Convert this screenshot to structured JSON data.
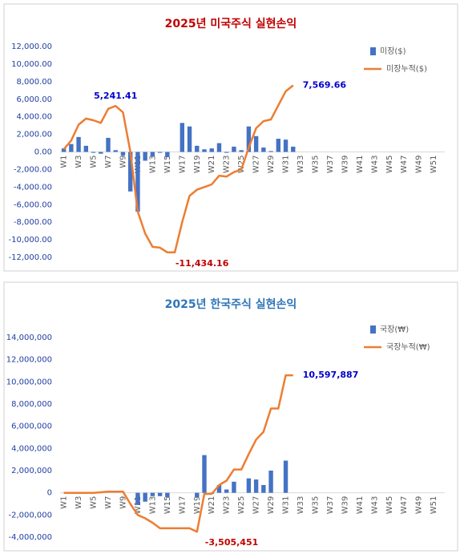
{
  "chart_data": [
    {
      "type": "combo",
      "title": "2025년 미국주식 실현손익",
      "title_color": "#c00000",
      "categories": [
        "W1",
        null,
        "W3",
        null,
        "W5",
        null,
        "W7",
        null,
        "W9",
        null,
        "W11",
        null,
        "W13",
        null,
        "W15",
        null,
        "W17",
        null,
        "W19",
        null,
        "W21",
        null,
        "W23",
        null,
        "W25",
        null,
        "W27",
        null,
        "W29",
        null,
        "W31",
        null,
        "W33",
        null,
        "W35",
        null,
        "W37",
        null,
        "W39",
        null,
        "W41",
        null,
        "W43",
        null,
        "W45",
        null,
        "W47",
        null,
        "W49",
        null,
        "W51",
        null
      ],
      "series": [
        {
          "name": "미장($)",
          "kind": "bar",
          "color": "#4472c4",
          "values": [
            400,
            900,
            1700,
            700,
            -100,
            -200,
            1600,
            200,
            -400,
            -4500,
            -6800,
            -1000,
            -500,
            -100,
            -600,
            0,
            3300,
            2900,
            700,
            300,
            400,
            1000,
            -100,
            600,
            200,
            2900,
            1800,
            500,
            100,
            1500,
            1400,
            600,
            null,
            null,
            null,
            null,
            null,
            null,
            null,
            null,
            null,
            null,
            null,
            null,
            null,
            null,
            null,
            null,
            null,
            null,
            null,
            null
          ]
        },
        {
          "name": "미장누적($)",
          "kind": "line",
          "color": "#ed7d31",
          "values": [
            300,
            1300,
            3100,
            3800,
            3600,
            3300,
            4900,
            5241.41,
            4500,
            0,
            -6800,
            -9300,
            -10800,
            -10900,
            -11434.16,
            -11434.16,
            -8000,
            -5000,
            -4300,
            -4000,
            -3700,
            -2700,
            -2800,
            -2300,
            -2000,
            500,
            2700,
            3500,
            3700,
            5300,
            6900,
            7569.66,
            null,
            null,
            null,
            null,
            null,
            null,
            null,
            null,
            null,
            null,
            null,
            null,
            null,
            null,
            null,
            null,
            null,
            null,
            null,
            null
          ],
          "value_labels": [
            null,
            null,
            null,
            null,
            null,
            null,
            null,
            "5,241.41",
            null,
            null,
            null,
            null,
            null,
            null,
            "-11,434.16",
            null,
            null,
            null,
            null,
            null,
            null,
            null,
            null,
            null,
            null,
            null,
            null,
            null,
            null,
            null,
            null,
            "7,569.66",
            null,
            null,
            null,
            null,
            null,
            null,
            null,
            null,
            null,
            null,
            null,
            null,
            null,
            null,
            null,
            null,
            null,
            null,
            null,
            null
          ],
          "value_label_colors": {
            "positive": "#0000cc",
            "negative": "#c00000"
          }
        }
      ],
      "ylim": [
        -12000,
        12000
      ],
      "yticks": [
        {
          "value": -12000,
          "label": "-12,000.00"
        },
        {
          "value": -10000,
          "label": "-10,000.00"
        },
        {
          "value": -8000,
          "label": "-8,000.00"
        },
        {
          "value": -6000,
          "label": "-6,000.00"
        },
        {
          "value": -4000,
          "label": "-4,000.00"
        },
        {
          "value": -2000,
          "label": "-2,000.00"
        },
        {
          "value": 0,
          "label": "0.00"
        },
        {
          "value": 2000,
          "label": "2,000.00"
        },
        {
          "value": 4000,
          "label": "4,000.00"
        },
        {
          "value": 6000,
          "label": "6,000.00"
        },
        {
          "value": 8000,
          "label": "8,000.00"
        },
        {
          "value": 10000,
          "label": "10,000.00"
        },
        {
          "value": 12000,
          "label": "12,000.00"
        }
      ],
      "legend": "top-right",
      "ytick_color": "#1f3fa0"
    },
    {
      "type": "combo",
      "title": "2025년 한국주식 실현손익",
      "title_color": "#2e75b6",
      "categories": [
        "W1",
        null,
        "W3",
        null,
        "W5",
        null,
        "W7",
        null,
        "W9",
        null,
        "W11",
        null,
        "W13",
        null,
        "W15",
        null,
        "W17",
        null,
        "W19",
        null,
        "W21",
        null,
        "W23",
        null,
        "W25",
        null,
        "W27",
        null,
        "W29",
        null,
        "W31",
        null,
        "W33",
        null,
        "W35",
        null,
        "W37",
        null,
        "W39",
        null,
        "W41",
        null,
        "W43",
        null,
        "W45",
        null,
        "W47",
        null,
        "W49",
        null,
        "W51",
        null
      ],
      "series": [
        {
          "name": "국장(₩)",
          "kind": "bar",
          "color": "#4472c4",
          "values": [
            0,
            0,
            0,
            0,
            0,
            0,
            0,
            0,
            0,
            0,
            -1100000,
            -800000,
            -300000,
            -300000,
            -400000,
            0,
            0,
            0,
            -400000,
            3400000,
            -100000,
            700000,
            300000,
            1000000,
            0,
            1300000,
            1200000,
            700000,
            2000000,
            0,
            2900000,
            0,
            null,
            null,
            null,
            null,
            null,
            null,
            null,
            null,
            null,
            null,
            null,
            null,
            null,
            null,
            null,
            null,
            null,
            null,
            null,
            null
          ]
        },
        {
          "name": "국장누적(₩)",
          "kind": "line",
          "color": "#ed7d31",
          "values": [
            0,
            0,
            0,
            0,
            0,
            50000,
            100000,
            100000,
            100000,
            -1000000,
            -2000000,
            -2300000,
            -2700000,
            -3200000,
            -3200000,
            -3200000,
            -3200000,
            -3200000,
            -3505451,
            -100000,
            -100000,
            700000,
            1100000,
            2100000,
            2100000,
            3500000,
            4800000,
            5500000,
            7600000,
            7600000,
            10597887,
            10597887,
            null,
            null,
            null,
            null,
            null,
            null,
            null,
            null,
            null,
            null,
            null,
            null,
            null,
            null,
            null,
            null,
            null,
            null,
            null,
            null
          ],
          "value_labels": [
            null,
            null,
            null,
            null,
            null,
            null,
            null,
            null,
            null,
            null,
            null,
            null,
            null,
            null,
            null,
            null,
            null,
            null,
            "-3,505,451",
            null,
            null,
            null,
            null,
            null,
            null,
            null,
            null,
            null,
            null,
            null,
            null,
            "10,597,887",
            null,
            null,
            null,
            null,
            null,
            null,
            null,
            null,
            null,
            null,
            null,
            null,
            null,
            null,
            null,
            null,
            null,
            null,
            null,
            null
          ],
          "value_label_colors": {
            "positive": "#0000cc",
            "negative": "#c00000"
          }
        }
      ],
      "ylim": [
        -4000000,
        14000000
      ],
      "yticks": [
        {
          "value": -4000000,
          "label": "-4,000,000"
        },
        {
          "value": -2000000,
          "label": "-2,000,000"
        },
        0,
        {
          "value": 2000000,
          "label": "2,000,000"
        },
        {
          "value": 4000000,
          "label": "4,000,000"
        },
        {
          "value": 6000000,
          "label": "6,000,000"
        },
        {
          "value": 8000000,
          "label": "8,000,000"
        },
        {
          "value": 10000000,
          "label": "10,000,000"
        },
        {
          "value": 12000000,
          "label": "12,000,000"
        },
        {
          "value": 14000000,
          "label": "14,000,000"
        }
      ],
      "legend": "top-right",
      "ytick_color": "#1f3fa0"
    }
  ]
}
